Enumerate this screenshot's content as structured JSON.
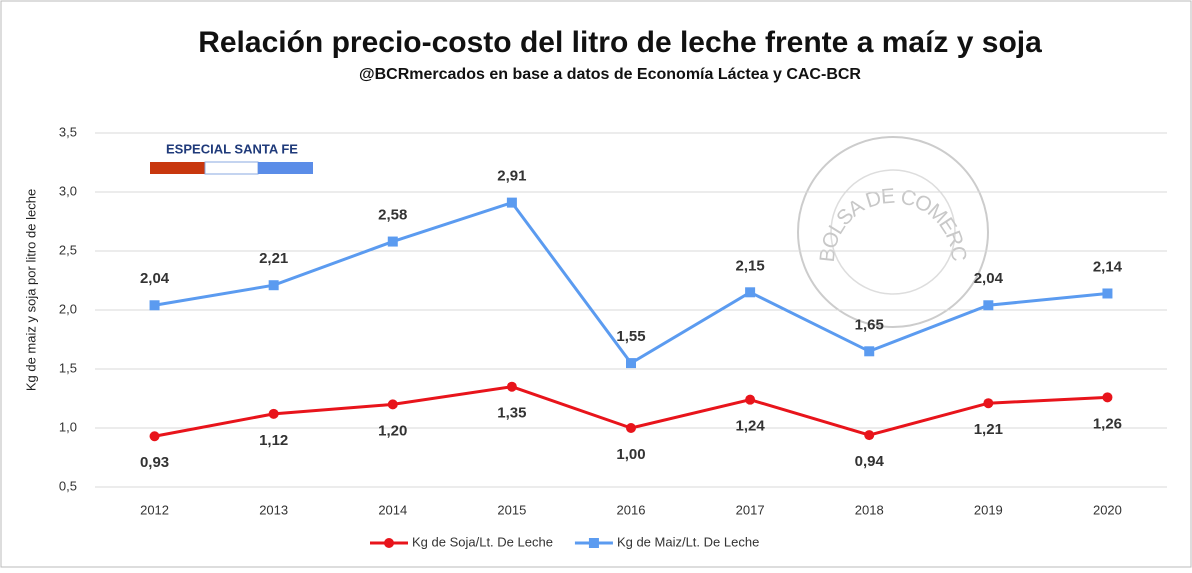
{
  "chart_data": {
    "type": "line",
    "title": "Relación precio-costo del litro de leche frente a maíz y soja",
    "subtitle": "@BCRmercados en base a datos de Economía Láctea y CAC-BCR",
    "ylabel": "Kg de maiz y soja por litro de leche",
    "badge": "ESPECIAL SANTA FE",
    "watermark": "BOLSA DE COMERCIO DE ROSARIO",
    "categories": [
      "2012",
      "2013",
      "2014",
      "2015",
      "2016",
      "2017",
      "2018",
      "2019",
      "2020"
    ],
    "series": [
      {
        "name": "Kg de Soja/Lt. De Leche",
        "color": "#e8141b",
        "marker": "circle",
        "values": [
          0.93,
          1.12,
          1.2,
          1.35,
          1.0,
          1.24,
          0.94,
          1.21,
          1.26
        ],
        "value_labels": [
          "0,93",
          "1,12",
          "1,20",
          "1,35",
          "1,00",
          "1,24",
          "0,94",
          "1,21",
          "1,26"
        ]
      },
      {
        "name": "Kg de Maiz/Lt. De Leche",
        "color": "#5b9bf0",
        "marker": "square",
        "values": [
          2.04,
          2.21,
          2.58,
          2.91,
          1.55,
          2.15,
          1.65,
          2.04,
          2.14
        ],
        "value_labels": [
          "2,04",
          "2,21",
          "2,58",
          "2,91",
          "1,55",
          "2,15",
          "1,65",
          "2,04",
          "2,14"
        ]
      }
    ],
    "ylim": [
      0.5,
      3.5
    ],
    "yticks": [
      {
        "value": 0.5,
        "label": "0,5"
      },
      {
        "value": 1.0,
        "label": "1,0"
      },
      {
        "value": 1.5,
        "label": "1,5"
      },
      {
        "value": 2.0,
        "label": "2,0"
      },
      {
        "value": 2.5,
        "label": "2,5"
      },
      {
        "value": 3.0,
        "label": "3,0"
      },
      {
        "value": 3.5,
        "label": "3,5"
      }
    ],
    "grid": true,
    "legend": "bottom"
  }
}
